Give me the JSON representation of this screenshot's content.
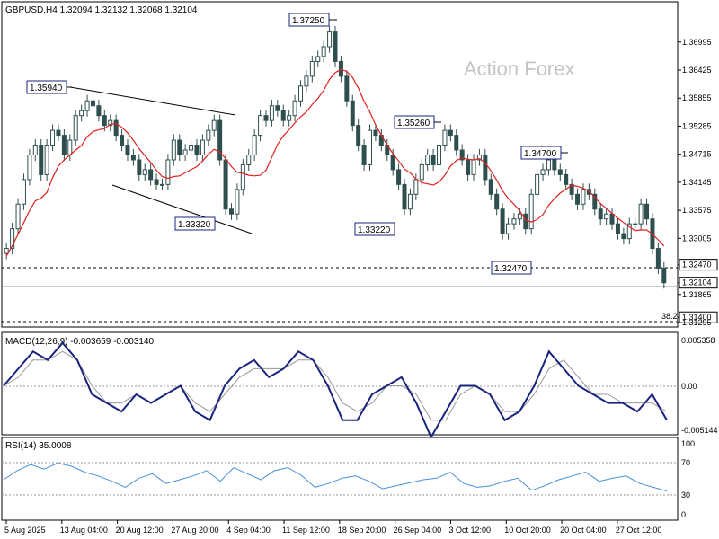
{
  "chart_data": [
    {
      "type": "candlestick",
      "symbol_line": "GBPUSD,H4  1.32094 1.32132 1.32068 1.32104",
      "watermark": "Action Forex",
      "ylim": [
        1.3124,
        1.3774
      ],
      "yticks": [
        "1.36995",
        "1.36425",
        "1.35855",
        "1.35285",
        "1.34715",
        "1.34145",
        "1.33575",
        "1.33005",
        "1.32470",
        "1.32104",
        "1.31865",
        "1.31400",
        "1.31295"
      ],
      "price_levels": [
        {
          "label": "1.32470",
          "value": 1.3247,
          "style": "dashed"
        },
        {
          "label": "1.32104",
          "value": 1.32104,
          "style": "solid-gray"
        },
        {
          "label": "1.31400",
          "value": 1.314,
          "style": "dashed"
        }
      ],
      "swing_labels": [
        "1.35940",
        "1.37250",
        "1.33320",
        "1.35260",
        "1.33220",
        "1.34700",
        "1.32470"
      ],
      "fib_label": "38.2",
      "candles_close": [
        1.328,
        1.332,
        1.337,
        1.342,
        1.347,
        1.349,
        1.343,
        1.349,
        1.352,
        1.351,
        1.347,
        1.35,
        1.355,
        1.356,
        1.358,
        1.357,
        1.355,
        1.353,
        1.354,
        1.351,
        1.349,
        1.347,
        1.346,
        1.343,
        1.344,
        1.342,
        1.341,
        1.341,
        1.346,
        1.35,
        1.347,
        1.348,
        1.349,
        1.347,
        1.35,
        1.352,
        1.354,
        1.346,
        1.336,
        1.335,
        1.34,
        1.345,
        1.347,
        1.351,
        1.355,
        1.354,
        1.357,
        1.356,
        1.354,
        1.355,
        1.358,
        1.361,
        1.363,
        1.366,
        1.367,
        1.369,
        1.372,
        1.366,
        1.363,
        1.358,
        1.353,
        1.349,
        1.345,
        1.352,
        1.351,
        1.349,
        1.347,
        1.344,
        1.341,
        1.336,
        1.339,
        1.342,
        1.345,
        1.347,
        1.345,
        1.349,
        1.352,
        1.351,
        1.348,
        1.346,
        1.343,
        1.346,
        1.347,
        1.342,
        1.339,
        1.336,
        1.331,
        1.333,
        1.334,
        1.335,
        1.332,
        1.339,
        1.343,
        1.344,
        1.346,
        1.344,
        1.343,
        1.341,
        1.339,
        1.337,
        1.34,
        1.339,
        1.336,
        1.334,
        1.335,
        1.333,
        1.331,
        1.33,
        1.333,
        1.333,
        1.337,
        1.334,
        1.328,
        1.324,
        1.32104
      ],
      "ma_label": "",
      "date_labels": [
        "5 Aug 2025",
        "13 Aug 04:00",
        "20 Aug 12:00",
        "27 Aug 20:00",
        "4 Sep 04:00",
        "11 Sep 12:00",
        "18 Sep 20:00",
        "26 Sep 04:00",
        "3 Oct 12:00",
        "10 Oct 20:00",
        "20 Oct 04:00",
        "27 Oct 12:00"
      ]
    },
    {
      "type": "line",
      "title": "MACD(12,26,9) -0.003659 -0.003140",
      "yticks": [
        "0.005358",
        "0.00",
        "-0.005144"
      ],
      "ylim": [
        -0.0055,
        0.0056
      ],
      "series": [
        {
          "name": "",
          "values": [
            0.0,
            0.002,
            0.004,
            0.003,
            0.005,
            0.003,
            -0.001,
            -0.002,
            -0.003,
            -0.001,
            -0.002,
            -0.001,
            0.0,
            -0.003,
            -0.004,
            0.0,
            0.002,
            0.003,
            0.001,
            0.002,
            0.004,
            0.003,
            0.0,
            -0.004,
            -0.004,
            -0.001,
            0.0,
            0.001,
            -0.002,
            -0.006,
            -0.003,
            0.0,
            0.0,
            -0.001,
            -0.004,
            -0.003,
            0.0,
            0.004,
            0.002,
            0.0,
            -0.001,
            -0.002,
            -0.002,
            -0.003,
            -0.001,
            -0.004
          ]
        },
        {
          "name": "",
          "values": [
            0.0,
            0.001,
            0.003,
            0.003,
            0.004,
            0.003,
            0.0,
            -0.002,
            -0.002,
            -0.001,
            -0.002,
            -0.001,
            0.0,
            -0.002,
            -0.003,
            -0.001,
            0.001,
            0.002,
            0.002,
            0.002,
            0.003,
            0.003,
            0.001,
            -0.002,
            -0.003,
            -0.002,
            0.0,
            0.0,
            -0.001,
            -0.004,
            -0.004,
            -0.001,
            0.0,
            -0.001,
            -0.003,
            -0.003,
            -0.001,
            0.002,
            0.003,
            0.001,
            -0.001,
            -0.001,
            -0.002,
            -0.002,
            -0.002,
            -0.003
          ]
        }
      ]
    },
    {
      "type": "line",
      "title": "RSI(14) 35.0008",
      "yticks": [
        "100",
        "70",
        "30",
        "0"
      ],
      "ylim": [
        0,
        100
      ],
      "series": [
        {
          "name": "",
          "values": [
            50,
            62,
            70,
            64,
            72,
            68,
            60,
            55,
            48,
            40,
            52,
            58,
            45,
            50,
            55,
            62,
            48,
            66,
            58,
            50,
            62,
            66,
            56,
            40,
            45,
            52,
            55,
            48,
            38,
            42,
            46,
            50,
            52,
            60,
            45,
            40,
            42,
            48,
            52,
            36,
            42,
            50,
            55,
            60,
            48,
            52,
            55,
            45,
            40,
            35
          ]
        }
      ]
    }
  ]
}
